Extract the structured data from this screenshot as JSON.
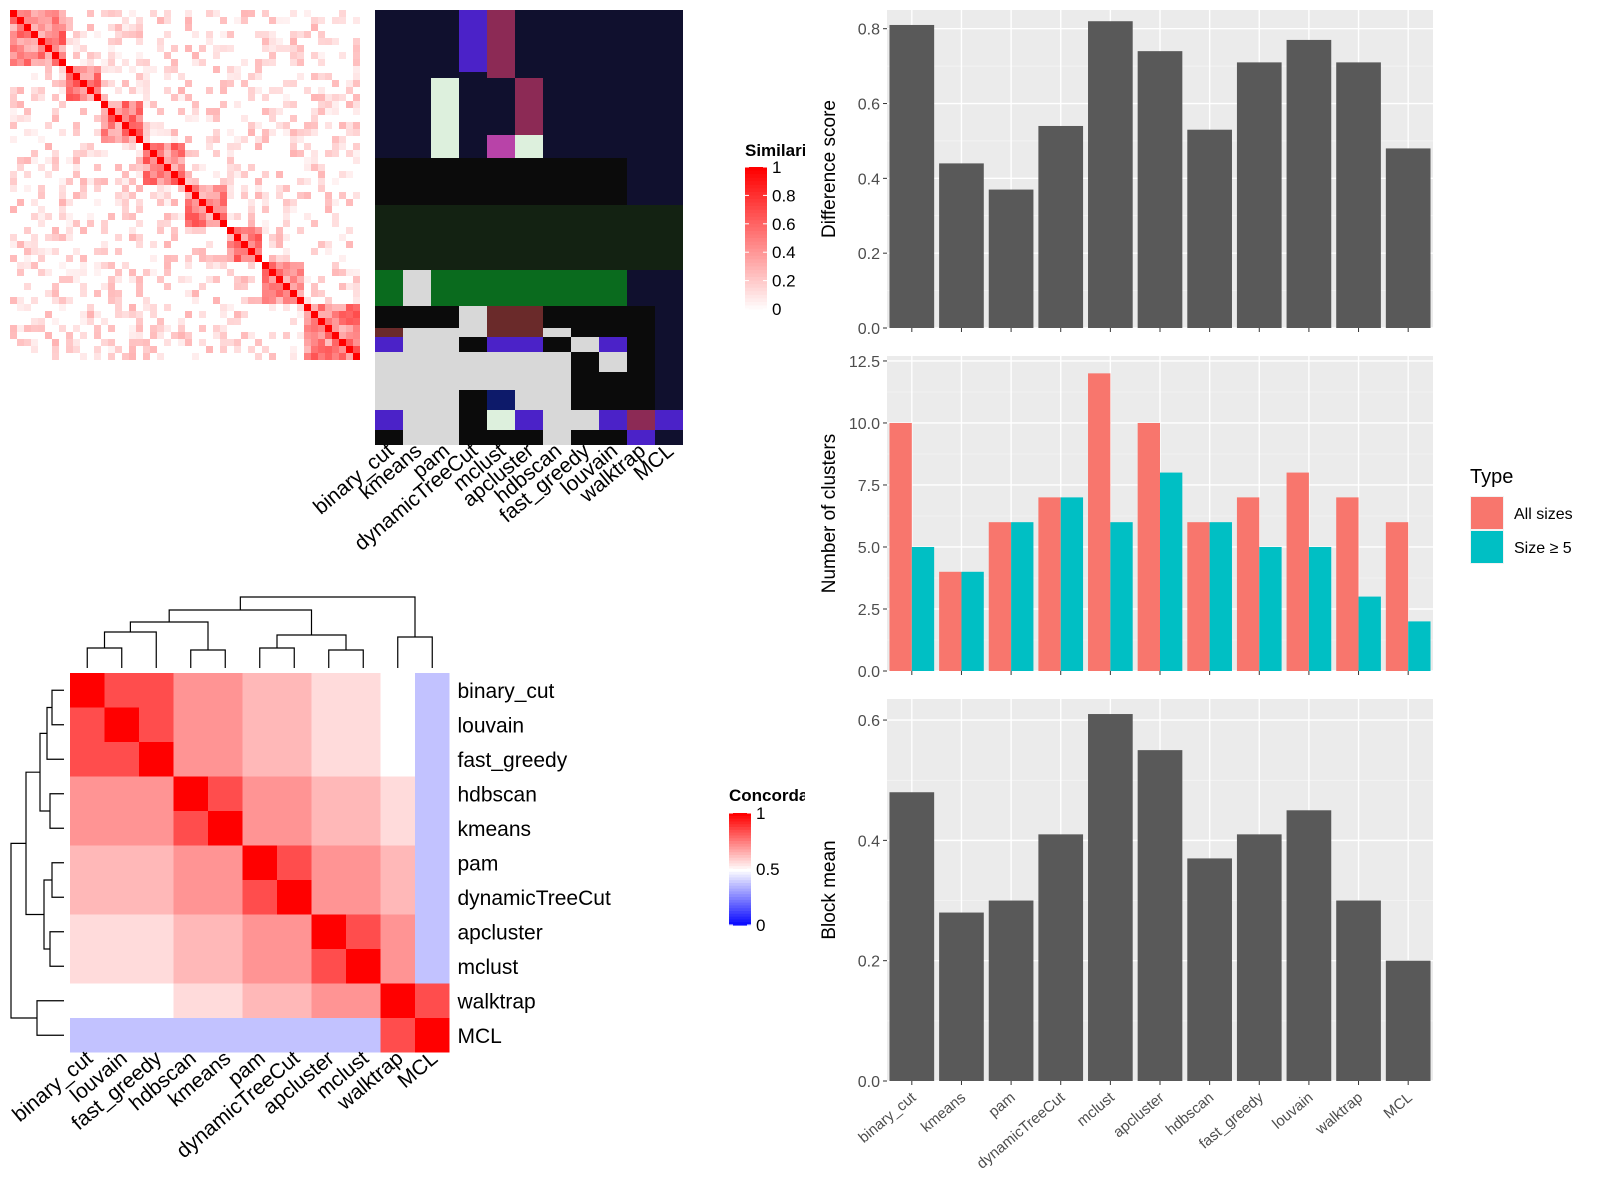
{
  "methods": [
    "binary_cut",
    "kmeans",
    "pam",
    "dynamicTreeCut",
    "mclust",
    "apcluster",
    "hdbscan",
    "fast_greedy",
    "louvain",
    "walktrap",
    "MCL"
  ],
  "similarity_panel": {
    "legend_title": "Similarity",
    "legend_ticks": [
      "1",
      "0.8",
      "0.6",
      "0.4",
      "0.2",
      "0"
    ],
    "labels": [
      "binary_cut",
      "kmeans",
      "pam",
      "dynamicTreeCut",
      "mclust",
      "apcluster",
      "hdbscan",
      "fast_greedy",
      "louvain",
      "walktrap",
      "MCL"
    ]
  },
  "concordance_panel": {
    "legend_title": "Concordance",
    "legend_ticks": [
      "1",
      "0.5",
      "0"
    ],
    "order": [
      "binary_cut",
      "louvain",
      "fast_greedy",
      "hdbscan",
      "kmeans",
      "pam",
      "dynamicTreeCut",
      "apcluster",
      "mclust",
      "walktrap",
      "MCL"
    ]
  },
  "colors": {
    "bar": "#595959",
    "all_sizes": "#F8766D",
    "size5": "#00BFC4",
    "panel_bg": "#EBEBEB",
    "heat_high": "#FF0000",
    "heat_low": "#0000FF"
  },
  "chart_data": [
    {
      "type": "bar",
      "ylabel": "Difference score",
      "categories": [
        "binary_cut",
        "kmeans",
        "pam",
        "dynamicTreeCut",
        "mclust",
        "apcluster",
        "hdbscan",
        "fast_greedy",
        "louvain",
        "walktrap",
        "MCL"
      ],
      "values": [
        0.81,
        0.44,
        0.37,
        0.54,
        0.82,
        0.74,
        0.53,
        0.71,
        0.77,
        0.71,
        0.48
      ],
      "ylim": [
        0,
        0.85
      ],
      "yticks": [
        "0.0",
        "0.2",
        "0.4",
        "0.6",
        "0.8"
      ],
      "grid": true
    },
    {
      "type": "bar",
      "ylabel": "Number of clusters",
      "categories": [
        "binary_cut",
        "kmeans",
        "pam",
        "dynamicTreeCut",
        "mclust",
        "apcluster",
        "hdbscan",
        "fast_greedy",
        "louvain",
        "walktrap",
        "MCL"
      ],
      "series": [
        {
          "name": "All sizes",
          "values": [
            10,
            4,
            6,
            7,
            12,
            10,
            6,
            7,
            8,
            7,
            6
          ]
        },
        {
          "name": "Size ≥ 5",
          "values": [
            5,
            4,
            6,
            7,
            6,
            8,
            6,
            5,
            5,
            3,
            2
          ]
        }
      ],
      "ylim": [
        0,
        12.7
      ],
      "yticks": [
        "0.0",
        "2.5",
        "5.0",
        "7.5",
        "10.0",
        "12.5"
      ],
      "legend_title": "Type",
      "legend_position": "right",
      "grid": true
    },
    {
      "type": "bar",
      "ylabel": "Block mean",
      "categories": [
        "binary_cut",
        "kmeans",
        "pam",
        "dynamicTreeCut",
        "mclust",
        "apcluster",
        "hdbscan",
        "fast_greedy",
        "louvain",
        "walktrap",
        "MCL"
      ],
      "values": [
        0.48,
        0.28,
        0.3,
        0.41,
        0.61,
        0.55,
        0.37,
        0.41,
        0.45,
        0.3,
        0.2
      ],
      "ylim": [
        0,
        0.635
      ],
      "yticks": [
        "0.0",
        "0.2",
        "0.4",
        "0.6"
      ],
      "grid": true
    }
  ]
}
